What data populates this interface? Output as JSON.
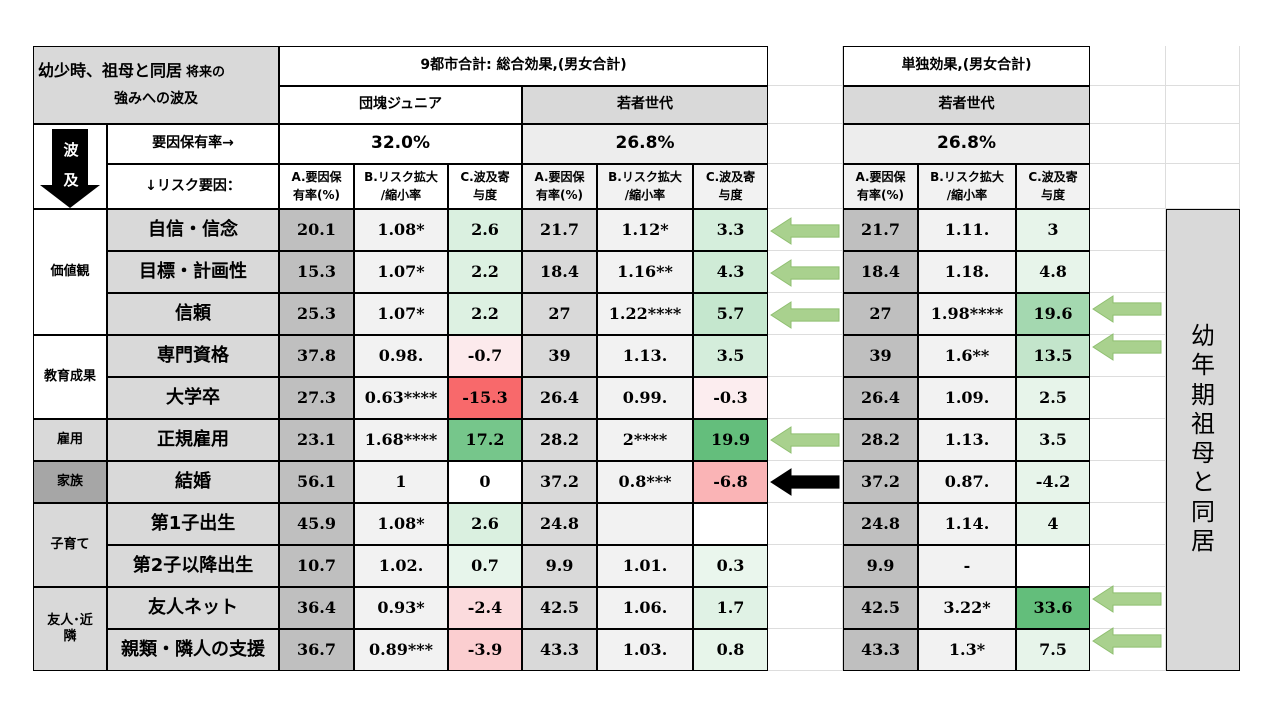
{
  "colors": {
    "header_gray": "#d9d9d9",
    "a_col_gray": "#bfbfbf",
    "green_strong": "#63be7b",
    "green_light": "#e3f3e7",
    "red_strong": "#f8696b",
    "red_light": "#fbd7d9",
    "arrow_green": "#a9d18e",
    "arrow_black": "#000000"
  },
  "title": {
    "line1": "幼少時、祖母と同居",
    "line1_small": "将来の",
    "line2": "強みへの波及"
  },
  "groups": {
    "total_effect": "9都市合計: 総合効果,(男女合計)",
    "single_effect": "単独効果,(男女合計)"
  },
  "gens": {
    "dankai": "団塊ジュニア",
    "wakamono": "若者世代",
    "wakamono_single": "若者世代"
  },
  "rate_label": "要因保有率→",
  "rates": {
    "dankai": "32.0%",
    "wakamono": "26.8%",
    "single": "26.8%"
  },
  "risk_label": "↓リスク要因：",
  "wave_label": "波\n及",
  "col_headers": [
    "A.要因保\n有率(%)",
    "B.リスク拡大\n/縮小率",
    "C.波及寄\n与度"
  ],
  "side_label": "幼\n年\n期\n祖\n母\nと\n同\n居",
  "categories": [
    {
      "label": "価値観"
    },
    {
      "label": "教育成果"
    },
    {
      "label": "雇用"
    },
    {
      "label": "家族"
    },
    {
      "label": "子育て"
    },
    {
      "label": "友人･近\n隣"
    }
  ],
  "rows": [
    {
      "item": "自信・信念",
      "dA": "20.1",
      "dB": "1.08*",
      "dC": "2.6",
      "wA": "21.7",
      "wB": "1.12*",
      "wC": "3.3",
      "sA": "21.7",
      "sB": "1.11.",
      "sC": "3"
    },
    {
      "item": "目標・計画性",
      "dA": "15.3",
      "dB": "1.07*",
      "dC": "2.2",
      "wA": "18.4",
      "wB": "1.16**",
      "wC": "4.3",
      "sA": "18.4",
      "sB": "1.18.",
      "sC": "4.8"
    },
    {
      "item": "信頼",
      "dA": "25.3",
      "dB": "1.07*",
      "dC": "2.2",
      "wA": "27",
      "wB": "1.22****",
      "wC": "5.7",
      "sA": "27",
      "sB": "1.98****",
      "sC": "19.6"
    },
    {
      "item": "専門資格",
      "dA": "37.8",
      "dB": "0.98.",
      "dC": "-0.7",
      "wA": "39",
      "wB": "1.13.",
      "wC": "3.5",
      "sA": "39",
      "sB": "1.6**",
      "sC": "13.5"
    },
    {
      "item": "大学卒",
      "dA": "27.3",
      "dB": "0.63****",
      "dC": "-15.3",
      "wA": "26.4",
      "wB": "0.99.",
      "wC": "-0.3",
      "sA": "26.4",
      "sB": "1.09.",
      "sC": "2.5"
    },
    {
      "item": "正規雇用",
      "dA": "23.1",
      "dB": "1.68****",
      "dC": "17.2",
      "wA": "28.2",
      "wB": "2****",
      "wC": "19.9",
      "sA": "28.2",
      "sB": "1.13.",
      "sC": "3.5"
    },
    {
      "item": "結婚",
      "dA": "56.1",
      "dB": "1",
      "dC": "0",
      "wA": "37.2",
      "wB": "0.8***",
      "wC": "-6.8",
      "sA": "37.2",
      "sB": "0.87.",
      "sC": "-4.2"
    },
    {
      "item": "第1子出生",
      "dA": "45.9",
      "dB": "1.08*",
      "dC": "2.6",
      "wA": "24.8",
      "wB": "",
      "wC": "",
      "sA": "24.8",
      "sB": "1.14.",
      "sC": "4"
    },
    {
      "item": "第2子以降出生",
      "dA": "10.7",
      "dB": "1.02.",
      "dC": "0.7",
      "wA": "9.9",
      "wB": "1.01.",
      "wC": "0.3",
      "sA": "9.9",
      "sB": "-",
      "sC": ""
    },
    {
      "item": "友人ネット",
      "dA": "36.4",
      "dB": "0.93*",
      "dC": "-2.4",
      "wA": "42.5",
      "wB": "1.06.",
      "wC": "1.7",
      "sA": "42.5",
      "sB": "3.22*",
      "sC": "33.6"
    },
    {
      "item": "親類・隣人の支援",
      "dA": "36.7",
      "dB": "0.89***",
      "dC": "-3.9",
      "wA": "43.3",
      "wB": "1.03.",
      "wC": "0.8",
      "sA": "43.3",
      "sB": "1.3*",
      "sC": "7.5"
    }
  ]
}
